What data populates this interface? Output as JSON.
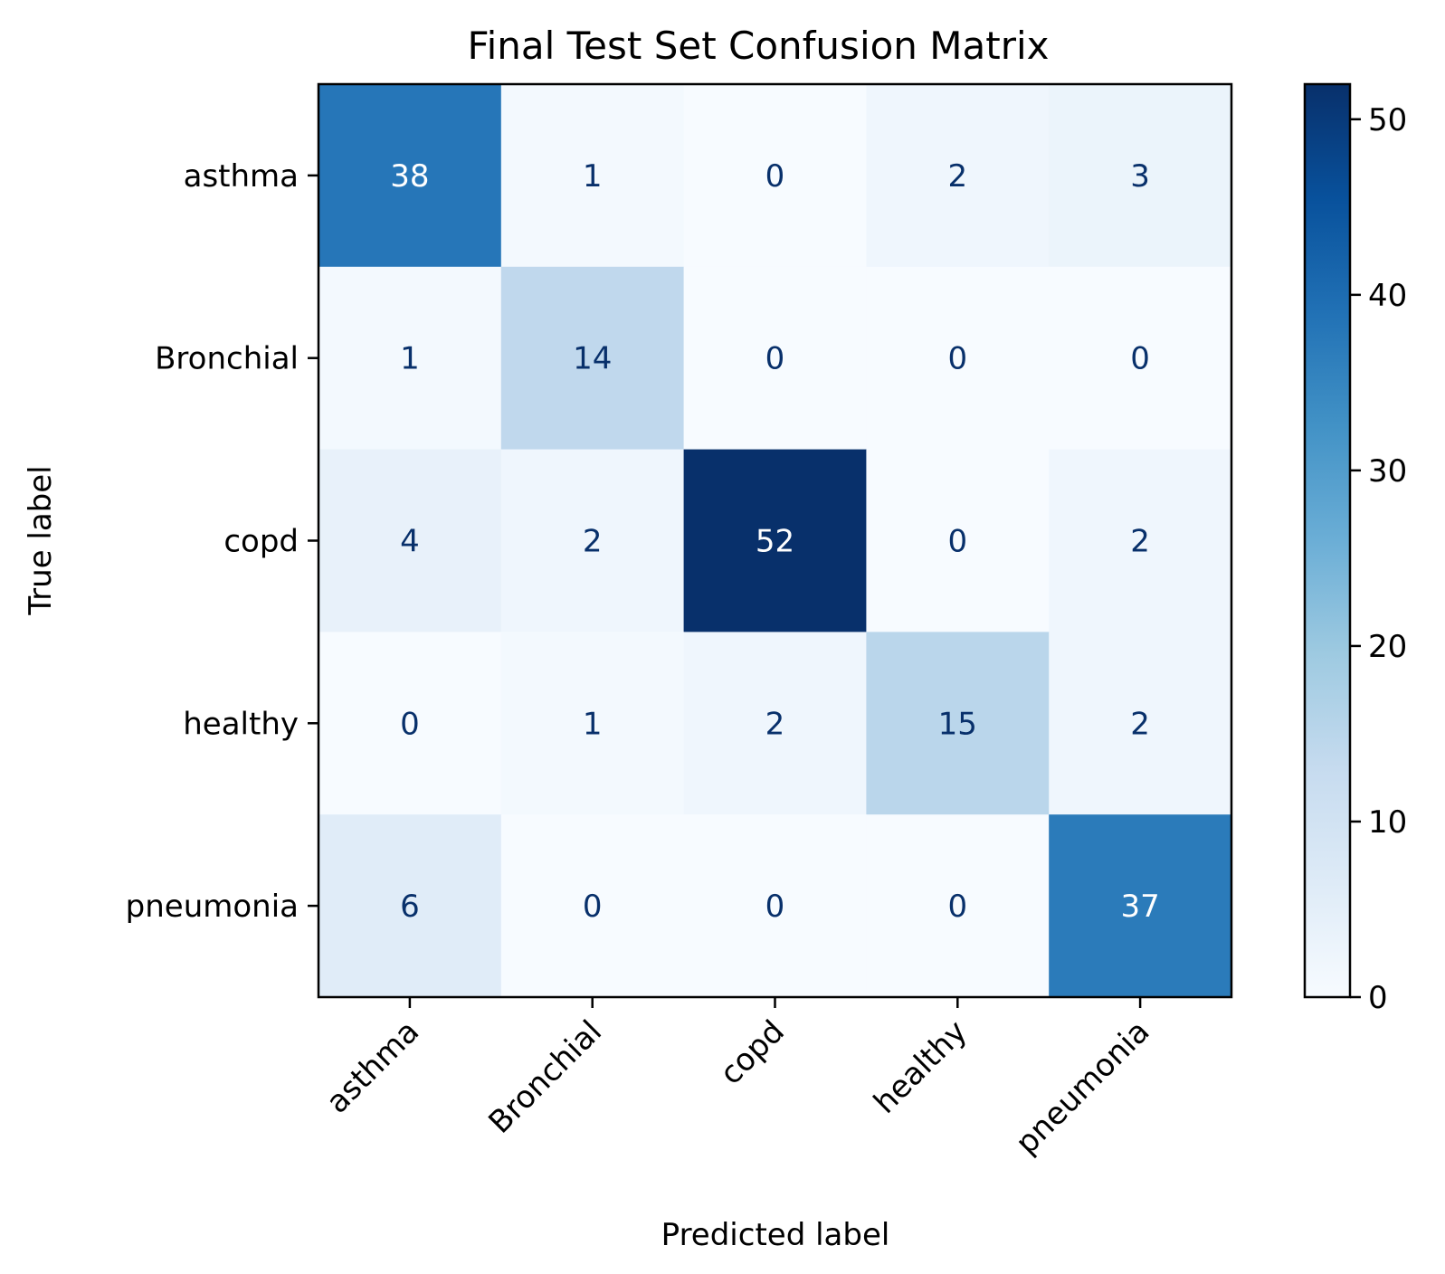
{
  "chart_data": {
    "type": "heatmap",
    "title": "Final Test Set Confusion Matrix",
    "xlabel": "Predicted label",
    "ylabel": "True label",
    "x_categories": [
      "asthma",
      "Bronchial",
      "copd",
      "healthy",
      "pneumonia"
    ],
    "y_categories": [
      "asthma",
      "Bronchial",
      "copd",
      "healthy",
      "pneumonia"
    ],
    "values": [
      [
        38,
        1,
        0,
        2,
        3
      ],
      [
        1,
        14,
        0,
        0,
        0
      ],
      [
        4,
        2,
        52,
        0,
        2
      ],
      [
        0,
        1,
        2,
        15,
        2
      ],
      [
        6,
        0,
        0,
        0,
        37
      ]
    ],
    "colormap": "Blues",
    "colorbar": {
      "range": [
        0,
        52
      ],
      "ticks": [
        0,
        10,
        20,
        30,
        40,
        50
      ]
    },
    "x_tick_rotation_deg": 45,
    "grid": false
  }
}
